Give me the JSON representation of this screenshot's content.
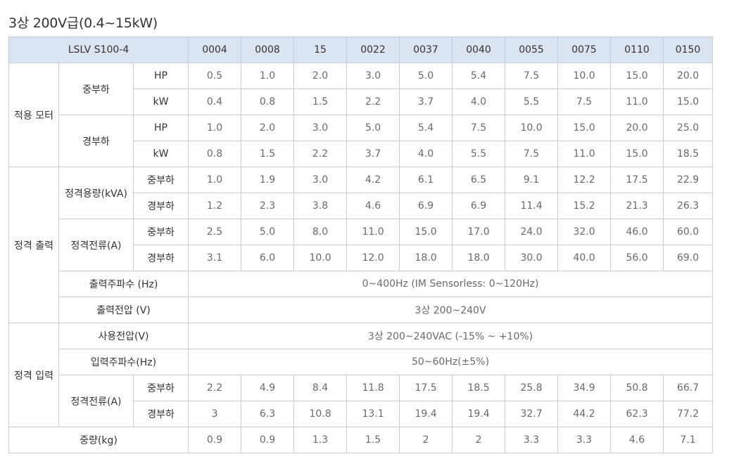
{
  "title": "3상 200V급(0.4~15kW)",
  "header": {
    "model": "LSLV S100-4",
    "columns": [
      "0004",
      "0008",
      "15",
      "0022",
      "0037",
      "0040",
      "0055",
      "0075",
      "0110",
      "0150"
    ]
  },
  "groups": {
    "motor": "적용 모터",
    "output": "정격 출력",
    "input": "정격 입력",
    "weight": "중량(kg)"
  },
  "sub": {
    "heavy_duty": "중부하",
    "normal_duty": "경부하",
    "capacity_kva": "정격용량(kVA)",
    "current_a": "정격전류(A)",
    "output_freq": "출력주파수 (Hz)",
    "output_voltage": "출력전압 (V)",
    "supply_voltage": "사용전압(V)",
    "input_freq": "입력주파수(Hz)",
    "input_current_a": "정격전류(A)"
  },
  "units": {
    "hp": "HP",
    "kw": "kW"
  },
  "rows": {
    "motor_heavy_hp": [
      "0.5",
      "1.0",
      "2.0",
      "3.0",
      "5.0",
      "5.4",
      "7.5",
      "10.0",
      "15.0",
      "20.0"
    ],
    "motor_heavy_kw": [
      "0.4",
      "0.8",
      "1.5",
      "2.2",
      "3.7",
      "4.0",
      "5.5",
      "7.5",
      "11.0",
      "15.0"
    ],
    "motor_normal_hp": [
      "1.0",
      "2.0",
      "3.0",
      "5.0",
      "5.4",
      "7.5",
      "10.0",
      "15.0",
      "20.0",
      "25.0"
    ],
    "motor_normal_kw": [
      "0.8",
      "1.5",
      "2.2",
      "3.7",
      "4.0",
      "5.5",
      "7.5",
      "11.0",
      "15.0",
      "18.5"
    ],
    "capacity_heavy": [
      "1.0",
      "1.9",
      "3.0",
      "4.2",
      "6.1",
      "6.5",
      "9.1",
      "12.2",
      "17.5",
      "22.9"
    ],
    "capacity_normal": [
      "1.2",
      "2.3",
      "3.8",
      "4.6",
      "6.9",
      "6.9",
      "11.4",
      "15.2",
      "21.3",
      "26.3"
    ],
    "current_heavy": [
      "2.5",
      "5.0",
      "8.0",
      "11.0",
      "15.0",
      "17.0",
      "24.0",
      "32.0",
      "46.0",
      "60.0"
    ],
    "current_normal": [
      "3.1",
      "6.0",
      "10.0",
      "12.0",
      "18.0",
      "18.0",
      "30.0",
      "40.0",
      "56.0",
      "69.0"
    ],
    "input_current_heavy": [
      "2.2",
      "4.9",
      "8.4",
      "11.8",
      "17.5",
      "18.5",
      "25.8",
      "34.9",
      "50.8",
      "66.7"
    ],
    "input_current_normal": [
      "3",
      "6.3",
      "10.8",
      "13.1",
      "19.4",
      "19.4",
      "32.7",
      "44.2",
      "62.3",
      "77.2"
    ],
    "weight": [
      "0.9",
      "0.9",
      "1.3",
      "1.5",
      "2",
      "2",
      "3.3",
      "3.3",
      "4.6",
      "7.1"
    ]
  },
  "spans": {
    "output_freq": "0~400Hz (IM Sensorless: 0~120Hz)",
    "output_voltage": "3상 200~240V",
    "supply_voltage": "3상 200~240VAC (-15% ~ +10%)",
    "input_freq": "50~60Hz(±5%)"
  },
  "colors": {
    "header_bg": "#dbe5f1",
    "border": "#c9cdd3",
    "value_text": "#6a6a6a",
    "label_text": "#333333"
  }
}
